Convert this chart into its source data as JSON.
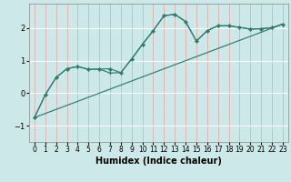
{
  "xlabel": "Humidex (Indice chaleur)",
  "bg_color": "#cce8e8",
  "line_color": "#2e7d6e",
  "grid_color_v": "#e8aaaa",
  "grid_color_h": "#ffffff",
  "xlim": [
    -0.5,
    23.5
  ],
  "ylim": [
    -1.5,
    2.75
  ],
  "yticks": [
    -1,
    0,
    1,
    2
  ],
  "xticks": [
    0,
    1,
    2,
    3,
    4,
    5,
    6,
    7,
    8,
    9,
    10,
    11,
    12,
    13,
    14,
    15,
    16,
    17,
    18,
    19,
    20,
    21,
    22,
    23
  ],
  "curve1_x": [
    0,
    1,
    2,
    3,
    4,
    5,
    6,
    7,
    8,
    9,
    10,
    11,
    12,
    13,
    14,
    15,
    16,
    17,
    18,
    19,
    20,
    21,
    22,
    23
  ],
  "curve1_y": [
    -0.75,
    -0.05,
    0.48,
    0.75,
    0.82,
    0.73,
    0.74,
    0.75,
    0.63,
    1.05,
    1.5,
    1.92,
    2.38,
    2.42,
    2.2,
    1.6,
    1.92,
    2.07,
    2.07,
    2.02,
    1.97,
    1.98,
    2.01,
    2.12
  ],
  "curve2_x": [
    0,
    1,
    2,
    3,
    4,
    5,
    6,
    7,
    8,
    9,
    10,
    11,
    12,
    13,
    14,
    15,
    16,
    17,
    18,
    19,
    20,
    21,
    22,
    23
  ],
  "curve2_y": [
    -0.75,
    -0.05,
    0.48,
    0.75,
    0.82,
    0.73,
    0.74,
    0.62,
    0.63,
    1.05,
    1.5,
    1.92,
    2.38,
    2.42,
    2.2,
    1.6,
    1.92,
    2.07,
    2.07,
    2.02,
    1.97,
    1.98,
    2.01,
    2.12
  ],
  "line_x": [
    0,
    23
  ],
  "line_y": [
    -0.75,
    2.12
  ],
  "xlabel_fontsize": 7,
  "tick_fontsize": 5.5
}
